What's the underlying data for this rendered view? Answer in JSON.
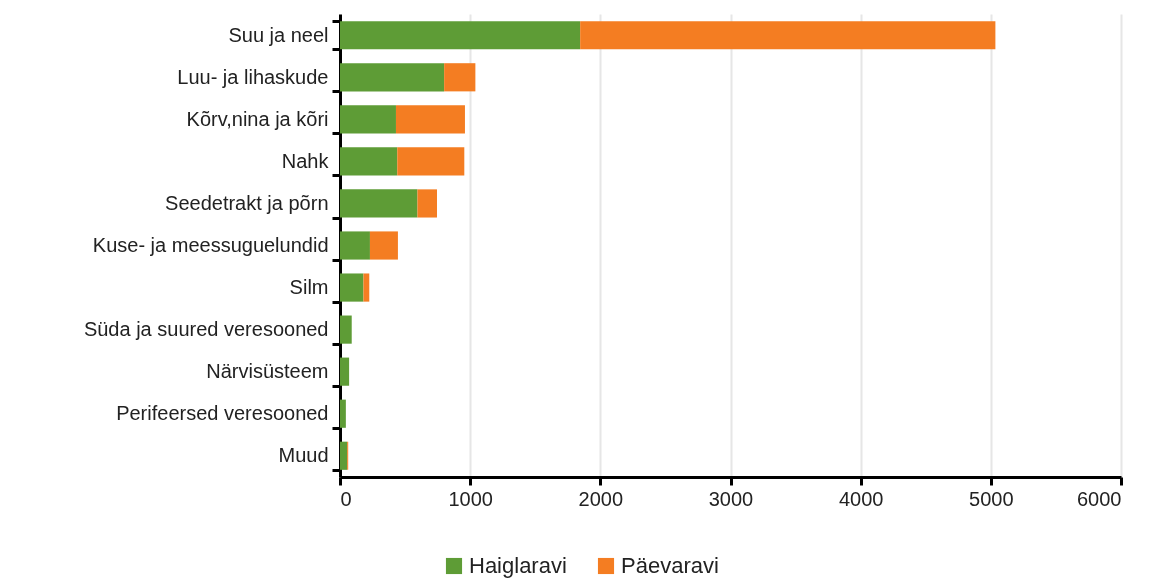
{
  "chart_data": {
    "type": "bar",
    "orientation": "horizontal",
    "stacked": true,
    "categories": [
      "Suu ja neel",
      "Luu- ja lihaskude",
      "Kõrv,nina ja kõri",
      "Nahk",
      "Seedetrakt ja põrn",
      "Kuse- ja meessuguelundid",
      "Silm",
      "Süda ja suured veresooned",
      "Närvisüsteem",
      "Perifeersed veresooned",
      "Muud"
    ],
    "series": [
      {
        "name": "Haiglaravi",
        "color": "#5e9c36",
        "values": [
          1845,
          800,
          430,
          440,
          595,
          230,
          180,
          90,
          70,
          45,
          55
        ]
      },
      {
        "name": "Päevaravi",
        "color": "#f47d22",
        "values": [
          3190,
          240,
          530,
          515,
          150,
          215,
          45,
          0,
          0,
          0,
          8
        ]
      }
    ],
    "xlim": [
      0,
      6000
    ],
    "xticks": [
      0,
      1000,
      2000,
      3000,
      4000,
      5000,
      6000
    ],
    "grid": "x",
    "legend": "bottom"
  }
}
